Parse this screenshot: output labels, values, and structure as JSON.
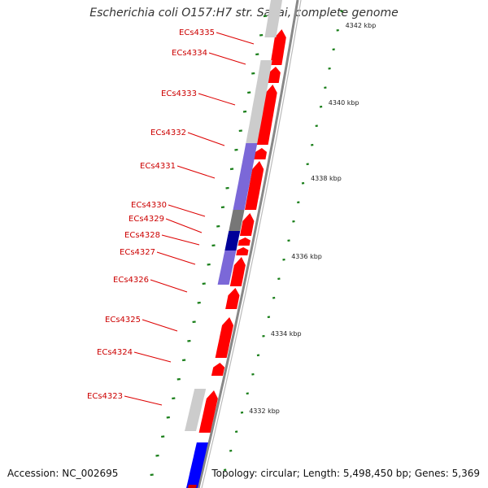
{
  "title": "Escherichia coli O157:H7 str. Sakai, complete genome",
  "accession_text": "Accession: NC_002695",
  "topology_text": "Topology: circular; Length: 5,498,450 bp; Genes: 5,369",
  "colors": {
    "forward_cds": "#ff0000",
    "reverse_cds": "#cccccc",
    "reverse_highlight": "#7b68d8",
    "dark_gray": "#777777",
    "dark_blue": "#000099",
    "blue": "#0000ff",
    "leader": "#dd0000",
    "label": "#cc0000",
    "gc_tick": "#1a7f1a",
    "backbone": "#888888"
  },
  "scale_labels": [
    "4342 kbp",
    "4340 kbp",
    "4338 kbp",
    "4336 kbp",
    "4334 kbp",
    "4332 kbp"
  ],
  "gene_labels": [
    "ECs4335",
    "ECs4334",
    "ECs4333",
    "ECs4332",
    "ECs4331",
    "ECs4330",
    "ECs4329",
    "ECs4328",
    "ECs4327",
    "ECs4326",
    "ECs4325",
    "ECs4324",
    "ECs4323"
  ]
}
